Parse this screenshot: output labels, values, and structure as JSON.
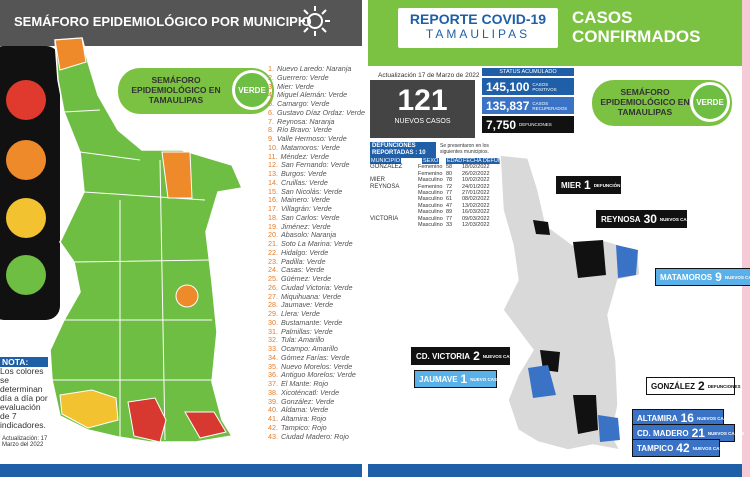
{
  "left": {
    "title": "SEMÁFORO EPIDEMIOLÓGICO POR MUNICIPIO",
    "badge": {
      "label": "SEMÁFORO EPIDEMIOLÓGICO EN TAMAULIPAS",
      "status": "VERDE"
    },
    "municipalities": [
      {
        "number": "1.",
        "name": "Nuevo Laredo: Naranja"
      },
      {
        "number": "2.",
        "name": "Guerrero: Verde"
      },
      {
        "number": "3.",
        "name": "Mier: Verde"
      },
      {
        "number": "4.",
        "name": "Miguel Alemán: Verde"
      },
      {
        "number": "5.",
        "name": "Camargo: Verde"
      },
      {
        "number": "6.",
        "name": "Gustavo Díaz Ordaz: Verde"
      },
      {
        "number": "7.",
        "name": "Reynosa: Naranja"
      },
      {
        "number": "8.",
        "name": "Río Bravo: Verde"
      },
      {
        "number": "9.",
        "name": "Valle Hermoso: Verde"
      },
      {
        "number": "10.",
        "name": "Matamoros: Verde"
      },
      {
        "number": "11.",
        "name": "Méndez: Verde"
      },
      {
        "number": "12.",
        "name": "San Fernando: Verde"
      },
      {
        "number": "13.",
        "name": "Burgos: Verde"
      },
      {
        "number": "14.",
        "name": "Cruillas: Verde"
      },
      {
        "number": "15.",
        "name": "San Nicolás: Verde"
      },
      {
        "number": "16.",
        "name": "Mainero: Verde"
      },
      {
        "number": "17.",
        "name": "Villagrán: Verde"
      },
      {
        "number": "18.",
        "name": "San Carlos: Verde"
      },
      {
        "number": "19.",
        "name": "Jiménez: Verde"
      },
      {
        "number": "20.",
        "name": "Abasolo: Naranja"
      },
      {
        "number": "21.",
        "name": "Soto La Marina: Verde"
      },
      {
        "number": "22.",
        "name": "Hidalgo: Verde"
      },
      {
        "number": "23.",
        "name": "Padilla: Verde"
      },
      {
        "number": "24.",
        "name": "Casas: Verde"
      },
      {
        "number": "25.",
        "name": "Güémez: Verde"
      },
      {
        "number": "26.",
        "name": "Ciudad Victoria: Verde"
      },
      {
        "number": "27.",
        "name": "Miquihuana: Verde"
      },
      {
        "number": "28.",
        "name": "Jaumave: Verde"
      },
      {
        "number": "29.",
        "name": "Llera: Verde"
      },
      {
        "number": "30.",
        "name": "Bustamante: Verde"
      },
      {
        "number": "31.",
        "name": "Palmillas: Verde"
      },
      {
        "number": "32.",
        "name": "Tula: Amarillo"
      },
      {
        "number": "33.",
        "name": "Ocampo: Amarillo"
      },
      {
        "number": "34.",
        "name": "Gómez Farías: Verde"
      },
      {
        "number": "35.",
        "name": "Nuevo Morelos: Verde"
      },
      {
        "number": "36.",
        "name": "Antiguo Morelos: Verde"
      },
      {
        "number": "37.",
        "name": "El Mante: Rojo"
      },
      {
        "number": "38.",
        "name": "Xicoténcatl: Verde"
      },
      {
        "number": "39.",
        "name": "González: Verde"
      },
      {
        "number": "40.",
        "name": "Aldama: Verde"
      },
      {
        "number": "41.",
        "name": "Altamira: Rojo"
      },
      {
        "number": "42.",
        "name": "Tampico: Rojo"
      },
      {
        "number": "43.",
        "name": "Ciudad Madero: Rojo"
      }
    ],
    "note": {
      "title": "NOTA:",
      "text": "Los colores se determinan día a día por evaluación de 7 indicadores."
    },
    "updated": "Actualización: 17 Marzo del 2022"
  },
  "right": {
    "header": {
      "title": "REPORTE COVID-19",
      "subtitle": "TAMAULIPAS",
      "heading": "CASOS CONFIRMADOS"
    },
    "updated": "Actualización 17 de Marzo de 2022",
    "new_cases": {
      "value": "121",
      "label": "NUEVOS CASOS"
    },
    "status": {
      "title": "STATUS ACUMULADO",
      "items": [
        {
          "value": "145,100",
          "label": "CASOS POSITIVOS"
        },
        {
          "value": "135,837",
          "label": "CASOS RECUPERADOS"
        },
        {
          "value": "7,750",
          "label": "DEFUNCIONES"
        }
      ]
    },
    "badge": {
      "label": "SEMÁFORO EPIDEMIOLÓGICO EN TAMAULIPAS",
      "status": "VERDE"
    },
    "deaths": {
      "title": "DEFUNCIONES REPORTADAS : 10",
      "note": "Se presentaron en los siguientes municipios.",
      "headers": [
        "MUNICIPIO",
        "SEXO",
        "EDAD",
        "FECHA DEFUNCIÓN"
      ],
      "groups": [
        {
          "municipio": "GONZÁLEZ",
          "rows": [
            {
              "sexo": "Femenino",
              "edad": 58,
              "fecha": "18/02/2022"
            },
            {
              "sexo": "Femenino",
              "edad": 80,
              "fecha": "26/02/2022"
            }
          ]
        },
        {
          "municipio": "MIER",
          "rows": [
            {
              "sexo": "Masculino",
              "edad": 78,
              "fecha": "10/02/2022"
            }
          ]
        },
        {
          "municipio": "REYNOSA",
          "rows": [
            {
              "sexo": "Femenino",
              "edad": 72,
              "fecha": "24/01/2022"
            },
            {
              "sexo": "Masculino",
              "edad": 77,
              "fecha": "27/01/2022"
            },
            {
              "sexo": "Masculino",
              "edad": 61,
              "fecha": "08/02/2022"
            },
            {
              "sexo": "Masculino",
              "edad": 47,
              "fecha": "13/02/2022"
            },
            {
              "sexo": "Masculino",
              "edad": 89,
              "fecha": "16/03/2022"
            }
          ]
        },
        {
          "municipio": "VICTORIA",
          "rows": [
            {
              "sexo": "Masculino",
              "edad": 77,
              "fecha": "09/03/2022"
            },
            {
              "sexo": "Masculino",
              "edad": 33,
              "fecha": "12/03/2022"
            }
          ]
        }
      ]
    },
    "map_labels": [
      {
        "name": "MIER",
        "count": "1",
        "label": "DEFUNCIÓN"
      },
      {
        "name": "REYNOSA",
        "count": "30",
        "label": "NUEVOS CASOS"
      },
      {
        "name": "MATAMOROS",
        "count": "9",
        "label": "NUEVOS CASOS"
      },
      {
        "name": "CD. VICTORIA",
        "count": "2",
        "label": "NUEVOS CASOS"
      },
      {
        "name": "JAUMAVE",
        "count": "1",
        "label": "NUEVO CASO"
      },
      {
        "name": "GONZÁLEZ",
        "count": "2",
        "label": "DEFUNCIONES"
      },
      {
        "name": "ALTAMIRA",
        "count": "16",
        "label": "NUEVOS CASOS"
      },
      {
        "name": "CD. MADERO",
        "count": "21",
        "label": "NUEVOS CASOS"
      },
      {
        "name": "TAMPICO",
        "count": "42",
        "label": "NUEVOS CASOS"
      }
    ]
  }
}
